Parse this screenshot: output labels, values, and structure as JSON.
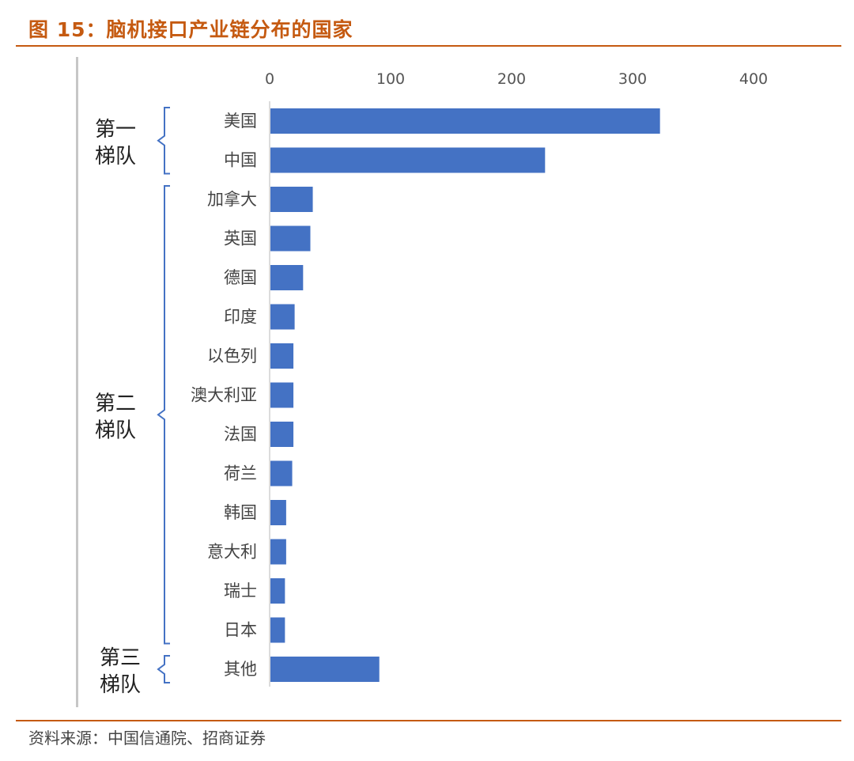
{
  "figure": {
    "title": "图 15：脑机接口产业链分布的国家",
    "source": "资料来源：中国信通院、招商证券"
  },
  "colors": {
    "accent": "#c55a11",
    "bar": "#4472c4",
    "bracket": "#4472c4"
  },
  "chart_data": {
    "type": "bar",
    "orientation": "horizontal",
    "x_axis_position": "top",
    "xlim": [
      0,
      400
    ],
    "xticks": [
      "0",
      "100",
      "200",
      "300",
      "400"
    ],
    "grid": false,
    "categories": [
      "美国",
      "中国",
      "加拿大",
      "英国",
      "德国",
      "印度",
      "以色列",
      "澳大利亚",
      "法国",
      "荷兰",
      "韩国",
      "意大利",
      "瑞士",
      "日本",
      "其他"
    ],
    "values": [
      322,
      227,
      35,
      33,
      27,
      20,
      19,
      19,
      19,
      18,
      13,
      13,
      12,
      12,
      90
    ],
    "tiers": [
      {
        "label_line1": "第一",
        "label_line2": "梯队",
        "from": 0,
        "to": 1
      },
      {
        "label_line1": "第二",
        "label_line2": "梯队",
        "from": 2,
        "to": 13
      },
      {
        "label_line1": "第三",
        "label_line2": "梯队",
        "from": 14,
        "to": 14
      }
    ]
  }
}
